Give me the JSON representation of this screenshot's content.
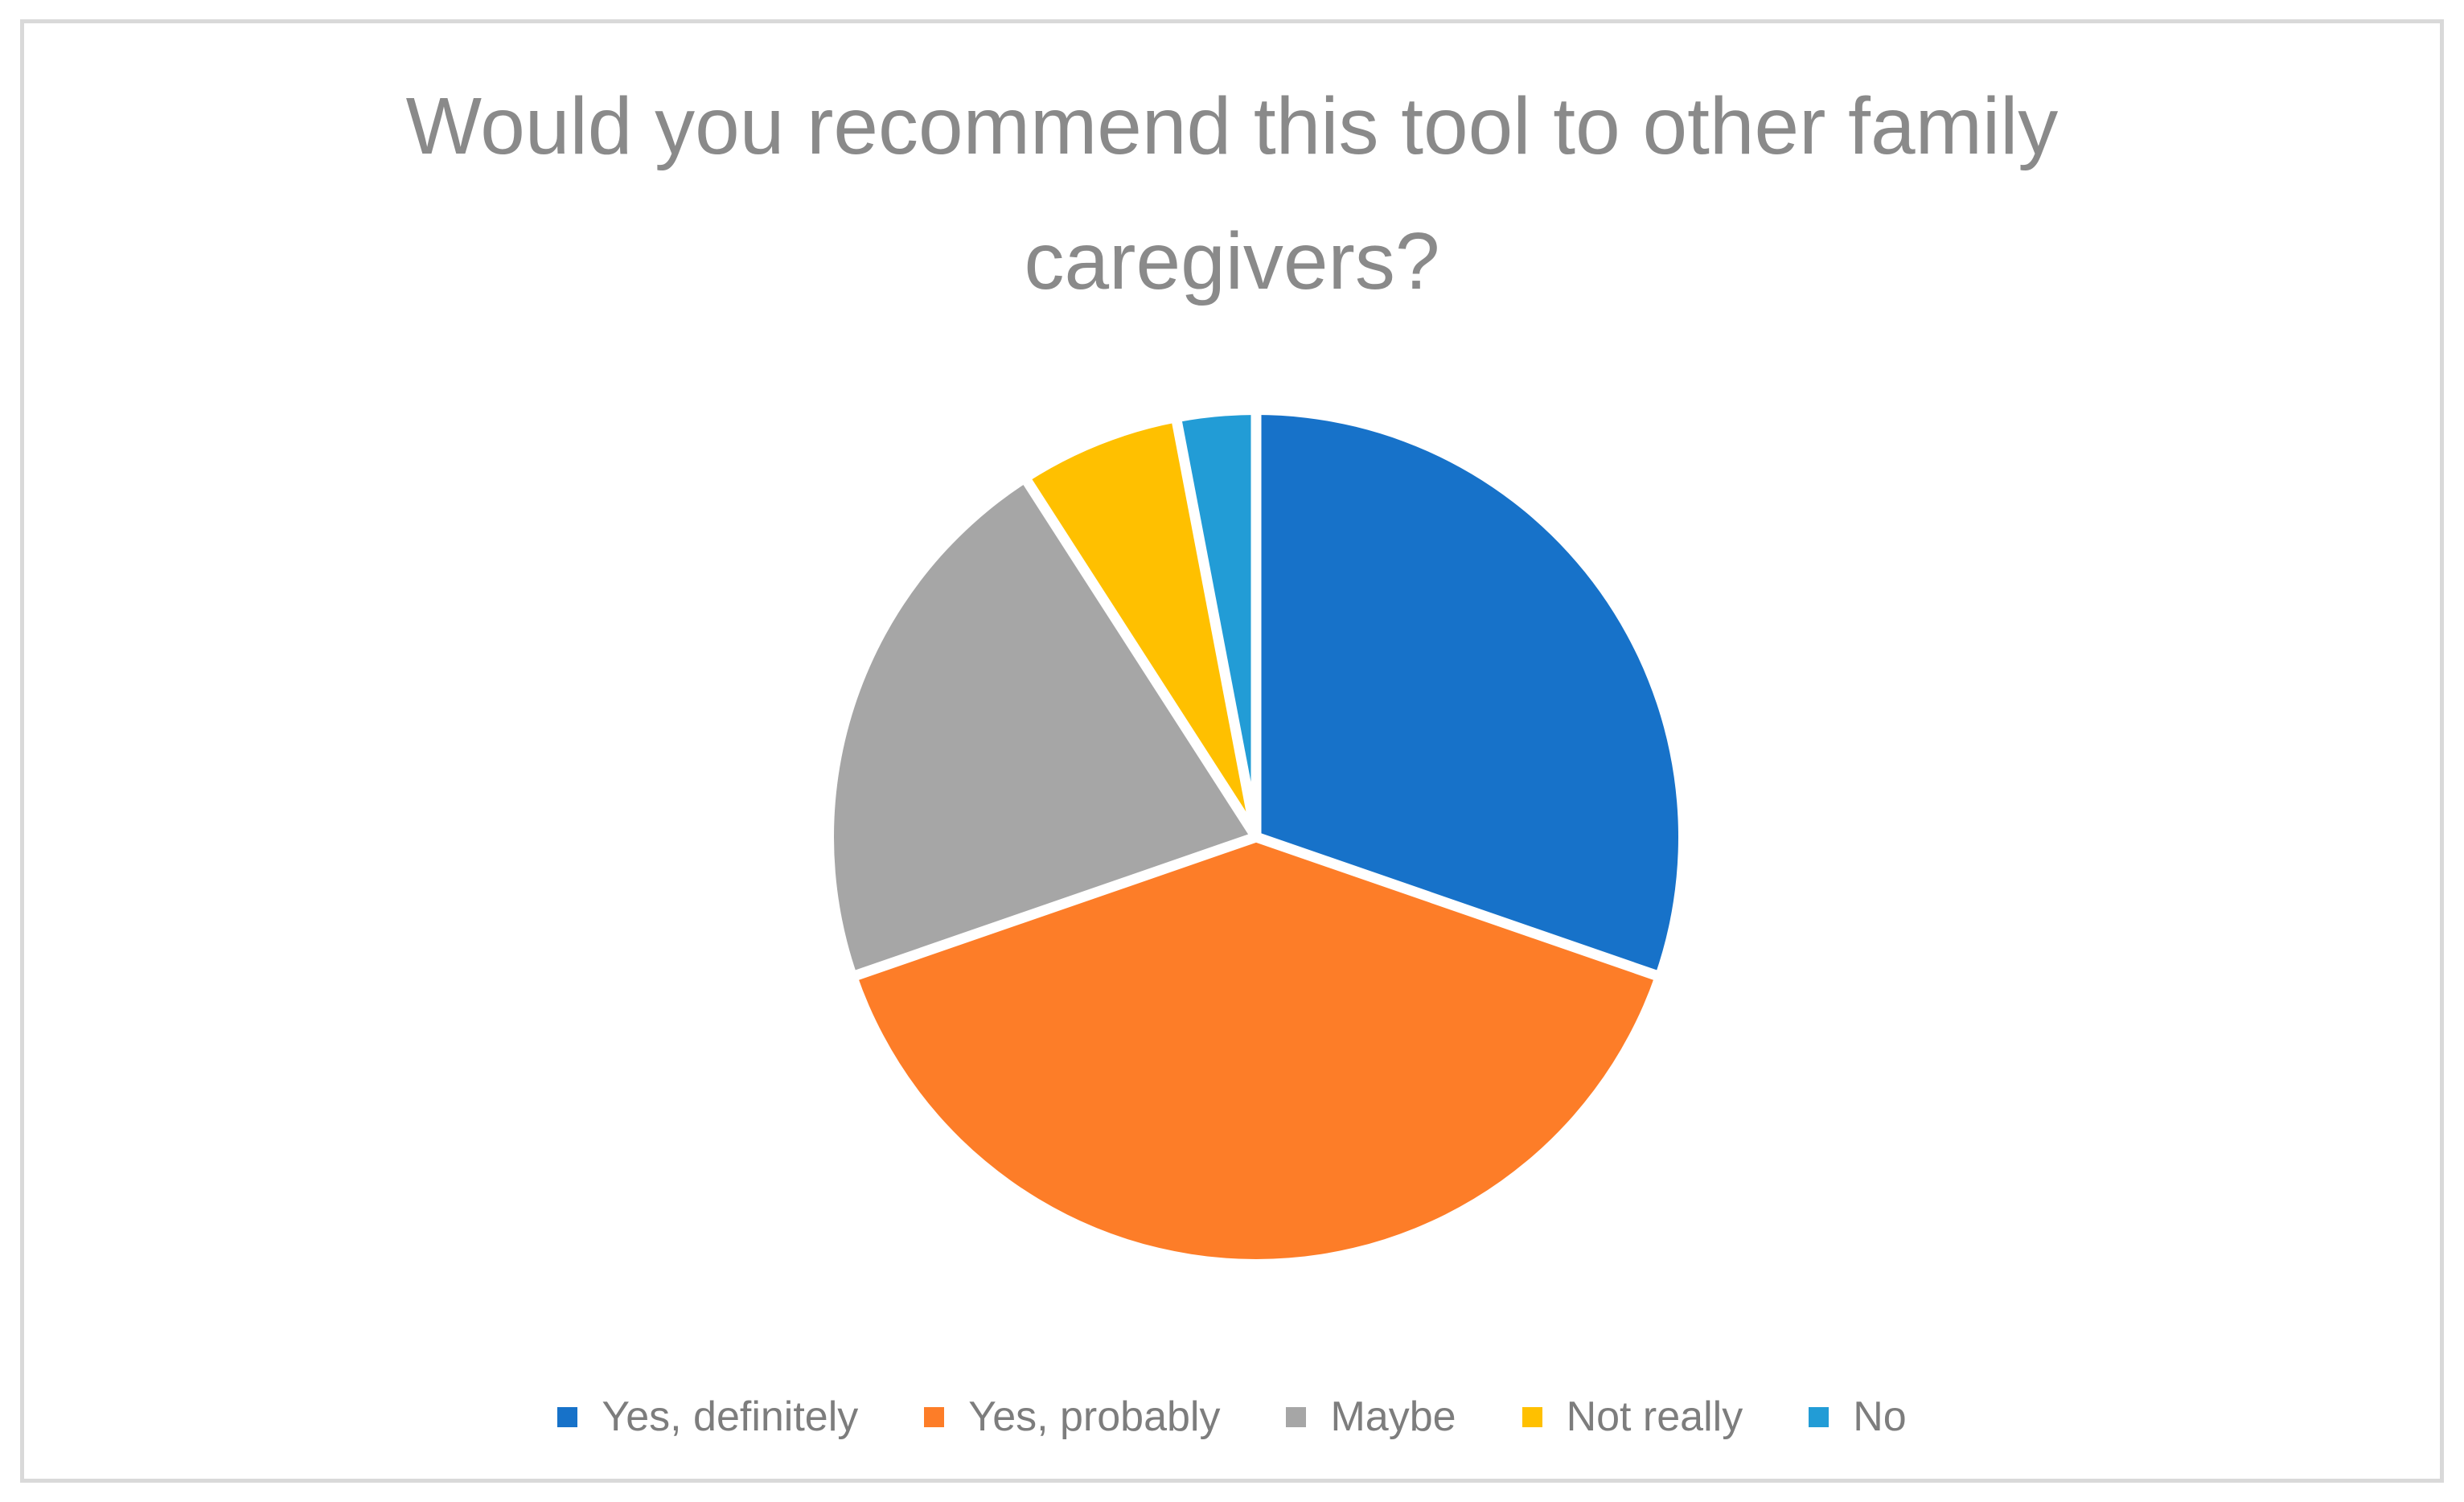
{
  "title": {
    "text": "Would you recommend this tool to other family caregivers?",
    "lines": [
      "Would you recommend this tool to other family",
      "caregivers?"
    ]
  },
  "chart_data": {
    "type": "pie",
    "title": "Would you recommend this tool to other family caregivers?",
    "labels": [
      "Yes, definitely",
      "Yes, probably",
      "Maybe",
      "Not really",
      "No"
    ],
    "values_percent": [
      30.3,
      39.4,
      21.2,
      6.1,
      3.0
    ],
    "colors": [
      "#1772C9",
      "#FD7D28",
      "#A6A6A6",
      "#FFC000",
      "#229CD6"
    ],
    "start_angle_deg": 0,
    "direction": "clockwise",
    "slice_border_color": "#FFFFFF",
    "legend_position": "bottom",
    "data_labels_shown": false,
    "title_color": "#8A8A8A",
    "legend_text_color": "#7D7D7D",
    "frame_border_color": "#D9D9D9"
  }
}
